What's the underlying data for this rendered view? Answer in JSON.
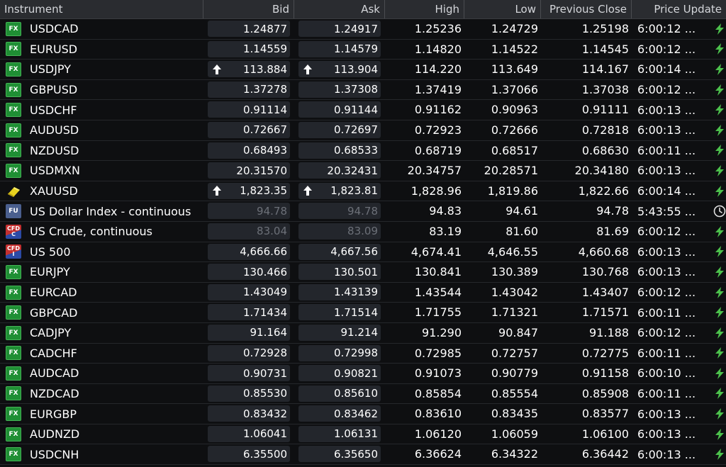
{
  "columns": {
    "instrument": "Instrument",
    "bid": "Bid",
    "ask": "Ask",
    "high": "High",
    "low": "Low",
    "prev_close": "Previous Close",
    "price_update": "Price Update"
  },
  "colors": {
    "up_arrow": "#ffffff",
    "lightning": "#4cc04c",
    "fx_badge": "#1f8f34"
  },
  "rows": [
    {
      "badge": "FX",
      "icon": "fx-icon",
      "name": "USDCAD",
      "bid": "1.24877",
      "ask": "1.24917",
      "high": "1.25236",
      "low": "1.24729",
      "prev": "1.25198",
      "time": "6:00:12 ...",
      "status": "lightning-icon",
      "arrow": false,
      "dim": false
    },
    {
      "badge": "FX",
      "icon": "fx-icon",
      "name": "EURUSD",
      "bid": "1.14559",
      "ask": "1.14579",
      "high": "1.14820",
      "low": "1.14522",
      "prev": "1.14545",
      "time": "6:00:12 ...",
      "status": "lightning-icon",
      "arrow": false,
      "dim": false
    },
    {
      "badge": "FX",
      "icon": "fx-icon",
      "name": "USDJPY",
      "bid": "113.884",
      "ask": "113.904",
      "high": "114.220",
      "low": "113.649",
      "prev": "114.167",
      "time": "6:00:14 ...",
      "status": "lightning-icon",
      "arrow": true,
      "dim": false
    },
    {
      "badge": "FX",
      "icon": "fx-icon",
      "name": "GBPUSD",
      "bid": "1.37278",
      "ask": "1.37308",
      "high": "1.37419",
      "low": "1.37066",
      "prev": "1.37038",
      "time": "6:00:12 ...",
      "status": "lightning-icon",
      "arrow": false,
      "dim": false
    },
    {
      "badge": "FX",
      "icon": "fx-icon",
      "name": "USDCHF",
      "bid": "0.91114",
      "ask": "0.91144",
      "high": "0.91162",
      "low": "0.90963",
      "prev": "0.91111",
      "time": "6:00:13 ...",
      "status": "lightning-icon",
      "arrow": false,
      "dim": false
    },
    {
      "badge": "FX",
      "icon": "fx-icon",
      "name": "AUDUSD",
      "bid": "0.72667",
      "ask": "0.72697",
      "high": "0.72923",
      "low": "0.72666",
      "prev": "0.72818",
      "time": "6:00:13 ...",
      "status": "lightning-icon",
      "arrow": false,
      "dim": false
    },
    {
      "badge": "FX",
      "icon": "fx-icon",
      "name": "NZDUSD",
      "bid": "0.68493",
      "ask": "0.68533",
      "high": "0.68719",
      "low": "0.68517",
      "prev": "0.68630",
      "time": "6:00:11 ...",
      "status": "lightning-icon",
      "arrow": false,
      "dim": false
    },
    {
      "badge": "FX",
      "icon": "fx-icon",
      "name": "USDMXN",
      "bid": "20.31570",
      "ask": "20.32431",
      "high": "20.34757",
      "low": "20.28571",
      "prev": "20.34180",
      "time": "6:00:13 ...",
      "status": "lightning-icon",
      "arrow": false,
      "dim": false
    },
    {
      "badge": "",
      "icon": "gold-bar-icon",
      "name": "XAUUSD",
      "bid": "1,823.35",
      "ask": "1,823.81",
      "high": "1,828.96",
      "low": "1,819.86",
      "prev": "1,822.66",
      "time": "6:00:14 ...",
      "status": "lightning-icon",
      "arrow": true,
      "dim": false
    },
    {
      "badge": "FU",
      "icon": "futures-icon",
      "name": "US Dollar Index - continuous",
      "bid": "94.78",
      "ask": "94.78",
      "high": "94.83",
      "low": "94.61",
      "prev": "94.78",
      "time": "5:43:55 ...",
      "status": "clock-icon",
      "arrow": false,
      "dim": true
    },
    {
      "badge": "CFD",
      "badge2": "C",
      "icon": "cfd-commodity-icon",
      "name": "US Crude, continuous",
      "bid": "83.04",
      "ask": "83.09",
      "high": "83.19",
      "low": "81.60",
      "prev": "81.69",
      "time": "6:00:12 ...",
      "status": "lightning-icon",
      "arrow": false,
      "dim": true
    },
    {
      "badge": "CFD",
      "badge2": "I",
      "icon": "cfd-index-icon",
      "name": "US 500",
      "bid": "4,666.66",
      "ask": "4,667.56",
      "high": "4,674.41",
      "low": "4,646.55",
      "prev": "4,660.68",
      "time": "6:00:13 ...",
      "status": "lightning-icon",
      "arrow": false,
      "dim": false
    },
    {
      "badge": "FX",
      "icon": "fx-icon",
      "name": "EURJPY",
      "bid": "130.466",
      "ask": "130.501",
      "high": "130.841",
      "low": "130.389",
      "prev": "130.768",
      "time": "6:00:13 ...",
      "status": "lightning-icon",
      "arrow": false,
      "dim": false
    },
    {
      "badge": "FX",
      "icon": "fx-icon",
      "name": "EURCAD",
      "bid": "1.43049",
      "ask": "1.43139",
      "high": "1.43544",
      "low": "1.43042",
      "prev": "1.43407",
      "time": "6:00:12 ...",
      "status": "lightning-icon",
      "arrow": false,
      "dim": false
    },
    {
      "badge": "FX",
      "icon": "fx-icon",
      "name": "GBPCAD",
      "bid": "1.71434",
      "ask": "1.71514",
      "high": "1.71755",
      "low": "1.71321",
      "prev": "1.71571",
      "time": "6:00:11 ...",
      "status": "lightning-icon",
      "arrow": false,
      "dim": false
    },
    {
      "badge": "FX",
      "icon": "fx-icon",
      "name": "CADJPY",
      "bid": "91.164",
      "ask": "91.214",
      "high": "91.290",
      "low": "90.847",
      "prev": "91.188",
      "time": "6:00:12 ...",
      "status": "lightning-icon",
      "arrow": false,
      "dim": false
    },
    {
      "badge": "FX",
      "icon": "fx-icon",
      "name": "CADCHF",
      "bid": "0.72928",
      "ask": "0.72998",
      "high": "0.72985",
      "low": "0.72757",
      "prev": "0.72775",
      "time": "6:00:11 ...",
      "status": "lightning-icon",
      "arrow": false,
      "dim": false
    },
    {
      "badge": "FX",
      "icon": "fx-icon",
      "name": "AUDCAD",
      "bid": "0.90731",
      "ask": "0.90821",
      "high": "0.91073",
      "low": "0.90779",
      "prev": "0.91158",
      "time": "6:00:10 ...",
      "status": "lightning-icon",
      "arrow": false,
      "dim": false
    },
    {
      "badge": "FX",
      "icon": "fx-icon",
      "name": "NZDCAD",
      "bid": "0.85530",
      "ask": "0.85610",
      "high": "0.85854",
      "low": "0.85554",
      "prev": "0.85908",
      "time": "6:00:11 ...",
      "status": "lightning-icon",
      "arrow": false,
      "dim": false
    },
    {
      "badge": "FX",
      "icon": "fx-icon",
      "name": "EURGBP",
      "bid": "0.83432",
      "ask": "0.83462",
      "high": "0.83610",
      "low": "0.83435",
      "prev": "0.83577",
      "time": "6:00:13 ...",
      "status": "lightning-icon",
      "arrow": false,
      "dim": false
    },
    {
      "badge": "FX",
      "icon": "fx-icon",
      "name": "AUDNZD",
      "bid": "1.06041",
      "ask": "1.06131",
      "high": "1.06120",
      "low": "1.06059",
      "prev": "1.06100",
      "time": "6:00:13 ...",
      "status": "lightning-icon",
      "arrow": false,
      "dim": false
    },
    {
      "badge": "FX",
      "icon": "fx-icon",
      "name": "USDCNH",
      "bid": "6.35500",
      "ask": "6.35650",
      "high": "6.36624",
      "low": "6.34322",
      "prev": "6.36442",
      "time": "6:00:13 ...",
      "status": "lightning-icon",
      "arrow": false,
      "dim": false
    }
  ]
}
